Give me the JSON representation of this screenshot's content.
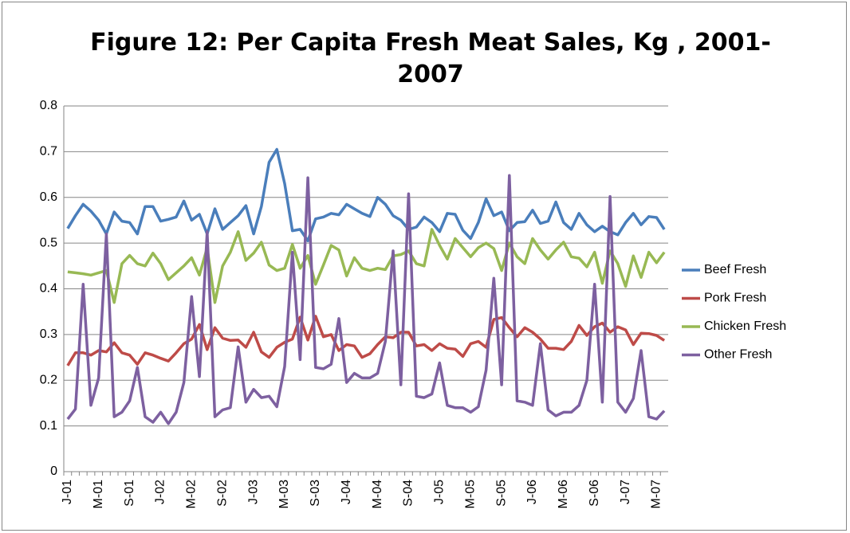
{
  "chart_data": {
    "type": "line",
    "title": "Figure 12: Per Capita Fresh Meat Sales, Kg , 2001-2007",
    "categories": [
      "J-01",
      null,
      null,
      null,
      "M-01",
      null,
      null,
      null,
      "S-01",
      null,
      null,
      null,
      "J-02",
      null,
      null,
      null,
      "M-02",
      null,
      null,
      null,
      "S-02",
      null,
      null,
      null,
      "J-03",
      null,
      null,
      null,
      "M-03",
      null,
      null,
      null,
      "S-03",
      null,
      null,
      null,
      "J-04",
      null,
      null,
      null,
      "M-04",
      null,
      null,
      null,
      "S-04",
      null,
      null,
      null,
      "J-05",
      null,
      null,
      null,
      "M-05",
      null,
      null,
      null,
      "S-05",
      null,
      null,
      null,
      "J-06",
      null,
      null,
      null,
      "M-06",
      null,
      null,
      null,
      "S-06",
      null,
      null,
      null,
      "J-07",
      null,
      null,
      null,
      "M-07",
      null
    ],
    "series": [
      {
        "name": "Beef Fresh",
        "color": "#4a7ebb",
        "values": [
          0.532,
          0.56,
          0.585,
          0.57,
          0.55,
          0.52,
          0.568,
          0.548,
          0.545,
          0.52,
          0.58,
          0.58,
          0.548,
          0.552,
          0.557,
          0.592,
          0.55,
          0.563,
          0.52,
          0.575,
          0.53,
          0.545,
          0.56,
          0.582,
          0.52,
          0.58,
          0.677,
          0.705,
          0.63,
          0.527,
          0.53,
          0.505,
          0.553,
          0.557,
          0.565,
          0.562,
          0.585,
          0.575,
          0.565,
          0.558,
          0.6,
          0.585,
          0.56,
          0.55,
          0.53,
          0.535,
          0.557,
          0.545,
          0.525,
          0.565,
          0.563,
          0.528,
          0.51,
          0.545,
          0.597,
          0.56,
          0.568,
          0.527,
          0.545,
          0.547,
          0.572,
          0.543,
          0.548,
          0.59,
          0.545,
          0.53,
          0.565,
          0.54,
          0.525,
          0.537,
          0.525,
          0.518,
          0.545,
          0.565,
          0.54,
          0.558,
          0.556,
          0.53
        ]
      },
      {
        "name": "Pork Fresh",
        "color": "#be4b48",
        "values": [
          0.232,
          0.26,
          0.26,
          0.255,
          0.265,
          0.262,
          0.282,
          0.26,
          0.255,
          0.235,
          0.26,
          0.255,
          0.248,
          0.242,
          0.26,
          0.28,
          0.29,
          0.322,
          0.267,
          0.315,
          0.292,
          0.287,
          0.288,
          0.272,
          0.305,
          0.262,
          0.25,
          0.272,
          0.283,
          0.29,
          0.338,
          0.288,
          0.34,
          0.295,
          0.3,
          0.265,
          0.278,
          0.275,
          0.25,
          0.258,
          0.278,
          0.295,
          0.293,
          0.305,
          0.305,
          0.275,
          0.278,
          0.265,
          0.28,
          0.27,
          0.268,
          0.252,
          0.28,
          0.285,
          0.272,
          0.333,
          0.337,
          0.315,
          0.295,
          0.315,
          0.305,
          0.29,
          0.27,
          0.27,
          0.267,
          0.285,
          0.32,
          0.298,
          0.317,
          0.325,
          0.305,
          0.317,
          0.31,
          0.278,
          0.303,
          0.302,
          0.298,
          0.287
        ]
      },
      {
        "name": "Chicken Fresh",
        "color": "#98b954",
        "values": [
          0.437,
          0.435,
          0.433,
          0.43,
          0.435,
          0.44,
          0.37,
          0.455,
          0.473,
          0.455,
          0.45,
          0.478,
          0.455,
          0.42,
          0.435,
          0.45,
          0.468,
          0.43,
          0.49,
          0.37,
          0.45,
          0.48,
          0.525,
          0.462,
          0.478,
          0.502,
          0.452,
          0.44,
          0.445,
          0.497,
          0.445,
          0.473,
          0.41,
          0.452,
          0.495,
          0.485,
          0.428,
          0.468,
          0.445,
          0.44,
          0.445,
          0.442,
          0.472,
          0.475,
          0.483,
          0.455,
          0.45,
          0.53,
          0.495,
          0.465,
          0.51,
          0.49,
          0.47,
          0.49,
          0.5,
          0.488,
          0.44,
          0.5,
          0.47,
          0.455,
          0.51,
          0.485,
          0.465,
          0.485,
          0.502,
          0.47,
          0.467,
          0.448,
          0.48,
          0.412,
          0.483,
          0.455,
          0.405,
          0.472,
          0.425,
          0.48,
          0.457,
          0.48
        ]
      },
      {
        "name": "Other Fresh",
        "color": "#7d60a0",
        "values": [
          0.115,
          0.137,
          0.41,
          0.145,
          0.205,
          0.52,
          0.12,
          0.13,
          0.155,
          0.228,
          0.12,
          0.108,
          0.13,
          0.105,
          0.13,
          0.195,
          0.383,
          0.208,
          0.525,
          0.12,
          0.135,
          0.14,
          0.273,
          0.152,
          0.18,
          0.162,
          0.165,
          0.142,
          0.23,
          0.48,
          0.245,
          0.643,
          0.228,
          0.225,
          0.235,
          0.335,
          0.195,
          0.215,
          0.205,
          0.205,
          0.215,
          0.285,
          0.483,
          0.19,
          0.608,
          0.165,
          0.162,
          0.17,
          0.238,
          0.145,
          0.14,
          0.14,
          0.13,
          0.142,
          0.222,
          0.423,
          0.19,
          0.648,
          0.155,
          0.152,
          0.145,
          0.28,
          0.135,
          0.122,
          0.13,
          0.13,
          0.145,
          0.2,
          0.41,
          0.152,
          0.602,
          0.152,
          0.13,
          0.16,
          0.265,
          0.12,
          0.115,
          0.133
        ]
      }
    ],
    "ylim": [
      0,
      0.8
    ],
    "yticks": [
      0,
      0.1,
      0.2,
      0.3,
      0.4,
      0.5,
      0.6,
      0.7,
      0.8
    ],
    "grid": true,
    "legend": "right"
  }
}
